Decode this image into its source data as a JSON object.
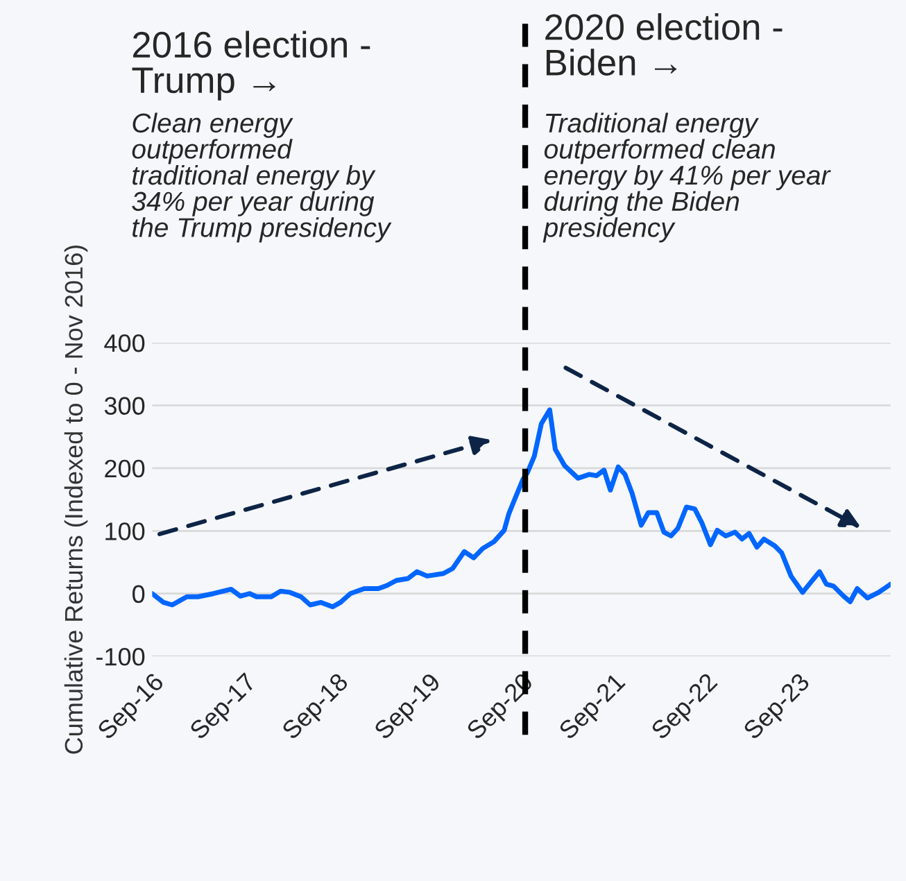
{
  "chart_data": {
    "type": "line",
    "ylabel": "Cumulative Returns (Indexed to 0 - Nov 2016)",
    "annotations": [
      "2016 election -\nTrump →",
      "Clean energy\noutperformed\ntraditional energy by\n34% per year during\nthe Trump presidency",
      "2020 election -\nBiden →",
      "Traditional energy\noutperformed clean\nenergy by 41% per year\nduring the Biden\npresidency"
    ],
    "series": [
      {
        "color": "#0066ff",
        "x": [
          "2016-09-01",
          "2016-10-16",
          "2016-11-19",
          "2017-01-16",
          "2017-03-01",
          "2017-05-01",
          "2017-07-10",
          "2017-08-16",
          "2017-09-22",
          "2017-10-19",
          "2017-12-16",
          "2018-01-22",
          "2018-02-28",
          "2018-04-13",
          "2018-05-19",
          "2018-07-01",
          "2018-08-16",
          "2018-09-16",
          "2018-10-25",
          "2018-12-19",
          "2019-02-13",
          "2019-03-19",
          "2019-04-25",
          "2019-06-10",
          "2019-07-16",
          "2019-08-25",
          "2019-10-28",
          "2019-12-04",
          "2020-01-19",
          "2020-02-25",
          "2020-04-01",
          "2020-05-16",
          "2020-06-25",
          "2020-07-13",
          "2020-08-01",
          "2020-09-07",
          "2020-09-25",
          "2020-10-22",
          "2020-11-19",
          "2020-12-22",
          "2021-01-13",
          "2021-02-19",
          "2021-04-13",
          "2021-05-28",
          "2021-06-25",
          "2021-07-25",
          "2021-08-19",
          "2021-09-19",
          "2021-10-16",
          "2021-11-13",
          "2021-12-19",
          "2022-01-16",
          "2022-02-19",
          "2022-03-19",
          "2022-04-16",
          "2022-05-13",
          "2022-06-16",
          "2022-07-19",
          "2022-08-16",
          "2022-09-19",
          "2022-10-16",
          "2022-11-19",
          "2022-12-25",
          "2023-01-22",
          "2023-02-19",
          "2023-03-22",
          "2023-04-19",
          "2023-06-01",
          "2023-06-28",
          "2023-08-04",
          "2023-09-19",
          "2023-10-19",
          "2023-11-25",
          "2023-12-22",
          "2024-01-19",
          "2024-02-28",
          "2024-03-25",
          "2024-04-22",
          "2024-06-01",
          "2024-07-16",
          "2024-09-01"
        ],
        "values": [
          0,
          -14,
          -18,
          -5,
          -5,
          0,
          7,
          -4,
          0,
          -5,
          -5,
          4,
          2,
          -5,
          -18,
          -14,
          -21,
          -14,
          0,
          8,
          8,
          13,
          21,
          24,
          35,
          28,
          32,
          40,
          67,
          57,
          72,
          83,
          101,
          127,
          146,
          182,
          193,
          219,
          271,
          293,
          230,
          204,
          184,
          190,
          188,
          197,
          165,
          202,
          190,
          160,
          109,
          129,
          129,
          98,
          92,
          104,
          138,
          135,
          113,
          78,
          101,
          92,
          98,
          87,
          96,
          74,
          87,
          76,
          65,
          28,
          2,
          17,
          35,
          15,
          12,
          -4,
          -13,
          8,
          -7,
          2,
          15
        ]
      }
    ],
    "xlim": [
      "2016-09-01",
      "2024-09-01"
    ],
    "xticks": [
      {
        "value": "2016-09",
        "label": "Sep-16"
      },
      {
        "value": "2017-09",
        "label": "Sep-17"
      },
      {
        "value": "2018-09",
        "label": "Sep-18"
      },
      {
        "value": "2019-09",
        "label": "Sep-19"
      },
      {
        "value": "2020-09",
        "label": "Sep-20"
      },
      {
        "value": "2021-09",
        "label": "Sep-21"
      },
      {
        "value": "2022-09",
        "label": "Sep-22"
      },
      {
        "value": "2023-09",
        "label": "Sep-23"
      }
    ],
    "ylim": [
      -100,
      400
    ],
    "yticks": [
      -100,
      0,
      100,
      200,
      300,
      400
    ],
    "grid": "y",
    "legend": false,
    "ref_lines": [
      {
        "axis": "x",
        "value": "2020-09-16",
        "color": "#000000",
        "line_style": "dashed"
      }
    ]
  }
}
